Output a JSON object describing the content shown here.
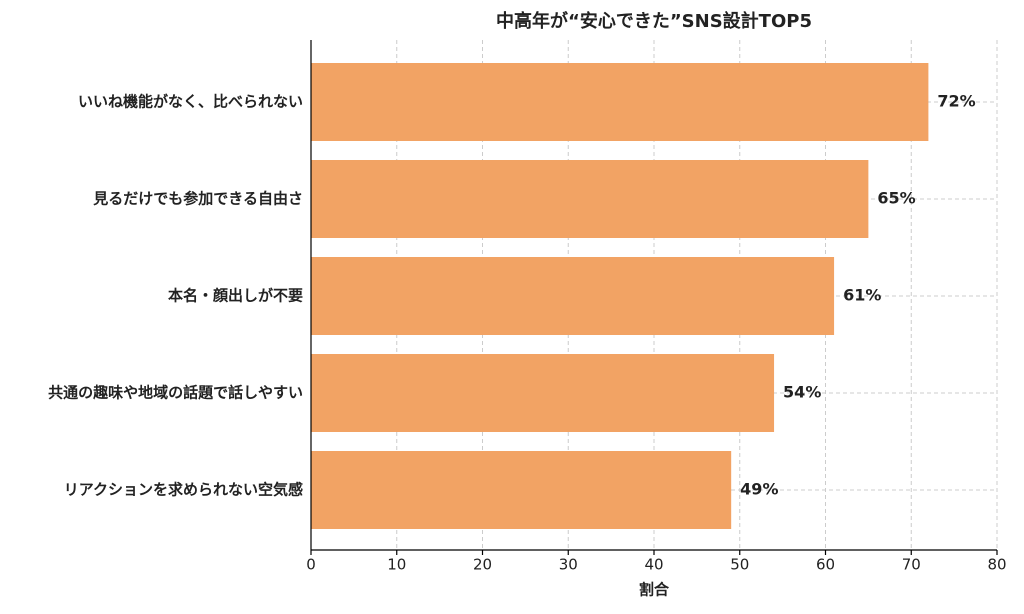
{
  "chart_data": {
    "type": "hbar",
    "title": "中高年が“安心できた”SNS設計TOP5",
    "x_label": "割合",
    "categories": [
      "いいね機能がなく、比べられない",
      "見るだけでも参加できる自由さ",
      "本名・顔出しが不要",
      "共通の趣味や地域の話題で話しやすい",
      "リアクションを求められない空気感"
    ],
    "values": [
      72,
      65,
      61,
      54,
      49
    ],
    "value_labels": [
      "72%",
      "65%",
      "61%",
      "54%",
      "49%"
    ],
    "color": "#f2a364",
    "xlim": [
      0,
      80
    ],
    "xticks": [
      0,
      10,
      20,
      30,
      40,
      50,
      60,
      70,
      80
    ],
    "grid": true
  }
}
